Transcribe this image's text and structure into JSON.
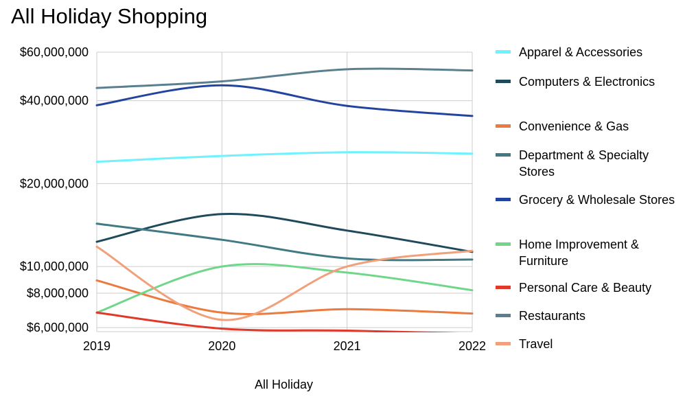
{
  "chart_data": {
    "type": "line",
    "title": "All Holiday Shopping",
    "xlabel": "All Holiday",
    "ylabel": "",
    "scale": "log",
    "x": [
      "2019",
      "2020",
      "2021",
      "2022"
    ],
    "ylim": [
      5800000,
      60000000
    ],
    "yticks": [
      6000000,
      8000000,
      10000000,
      20000000,
      40000000,
      60000000
    ],
    "ytick_labels": [
      "$6,000,000",
      "$8,000,000",
      "$10,000,000",
      "$20,000,000",
      "$40,000,000",
      "$60,000,000"
    ],
    "grid": true,
    "legend_position": "right",
    "series": [
      {
        "name": "Apparel & Accessories",
        "color": "#6ff2ff",
        "values": [
          24000000,
          25200000,
          26000000,
          25700000
        ]
      },
      {
        "name": "Computers & Electronics",
        "color": "#1f4a5c",
        "values": [
          12300000,
          15500000,
          13500000,
          11300000
        ]
      },
      {
        "name": "Convenience & Gas",
        "color": "#ea7a3e",
        "values": [
          8900000,
          6800000,
          7000000,
          6750000
        ]
      },
      {
        "name": "Department & Specialty Stores",
        "color": "#417a84",
        "values": [
          14300000,
          12500000,
          10700000,
          10600000
        ]
      },
      {
        "name": "Grocery & Wholesale Stores",
        "color": "#22449e",
        "values": [
          38500000,
          45500000,
          38300000,
          35200000
        ]
      },
      {
        "name": "Home Improvement & Furniture",
        "color": "#6fd68a",
        "values": [
          6800000,
          10000000,
          9500000,
          8200000
        ]
      },
      {
        "name": "Personal Care & Beauty",
        "color": "#e0392a",
        "values": [
          6800000,
          5950000,
          5850000,
          5700000
        ]
      },
      {
        "name": "Restaurants",
        "color": "#5a8090",
        "values": [
          44500000,
          47000000,
          52000000,
          51500000
        ]
      },
      {
        "name": "Travel",
        "color": "#f0a07a",
        "values": [
          11800000,
          6400000,
          10000000,
          11400000
        ]
      }
    ]
  }
}
